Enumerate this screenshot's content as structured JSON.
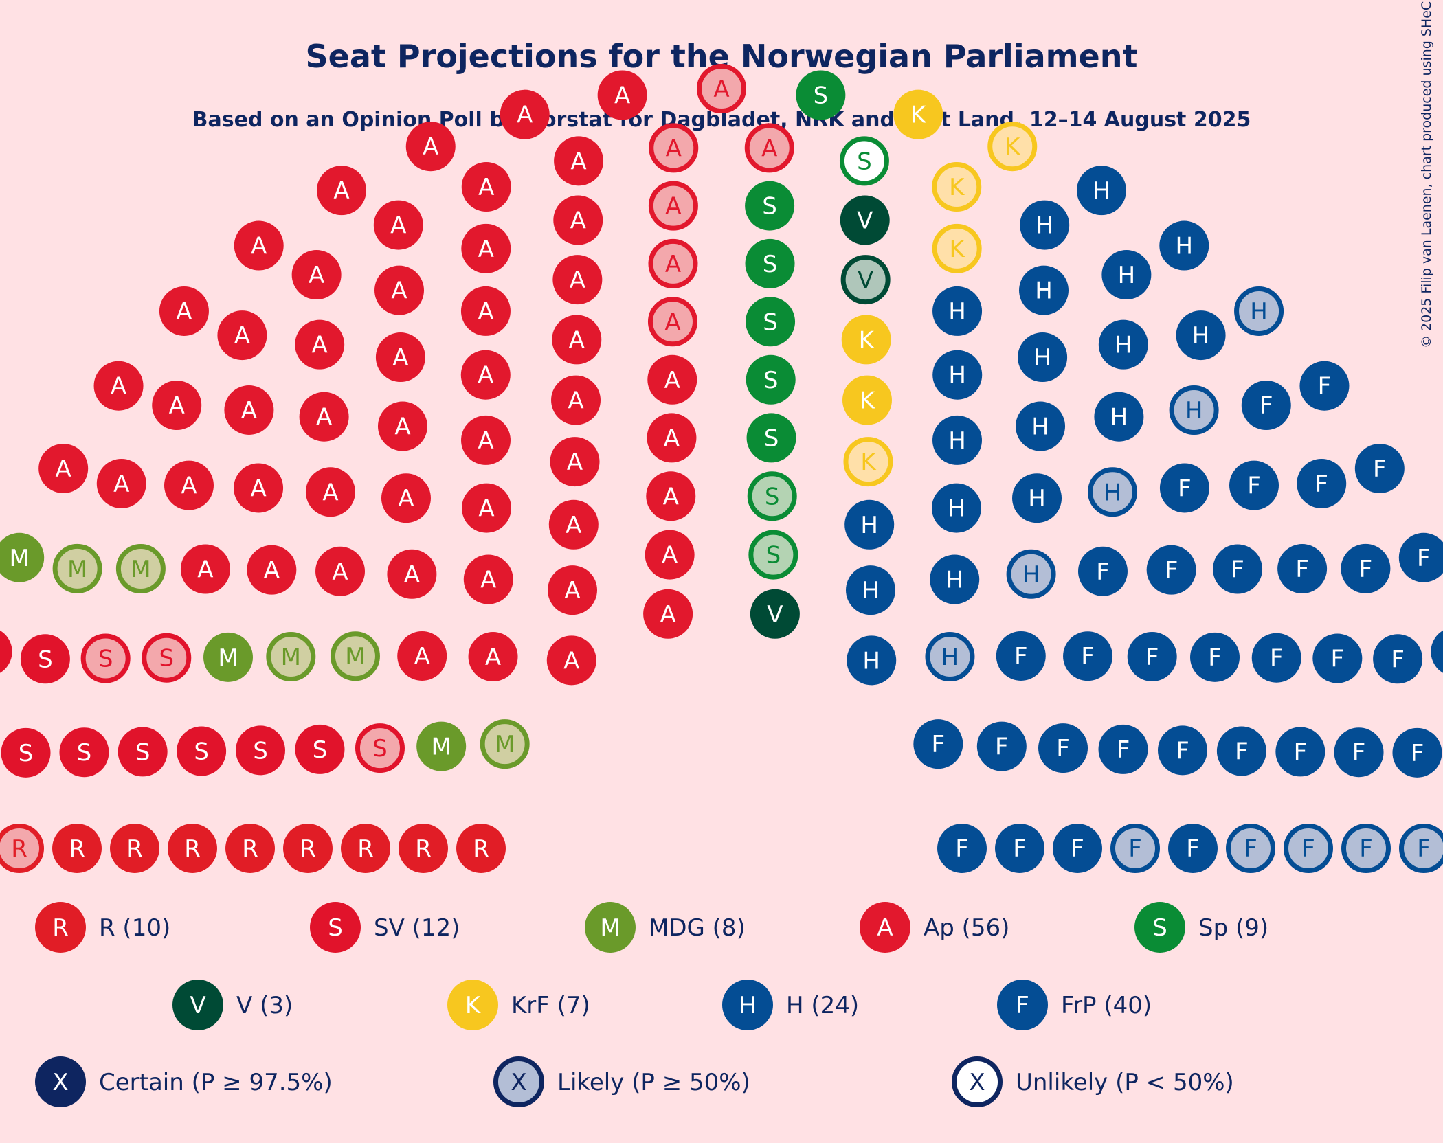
{
  "title": "Seat Projections for the Norwegian Parliament",
  "subtitle": "Based on an Opinion Poll by Norstat for Dagbladet, NRK and Vårt Land, 12–14 August 2025",
  "copyright": "© 2025 Filip van Laenen, chart produced using SHeC",
  "chart_data": {
    "type": "parliament",
    "total_seats": 169,
    "parties": [
      {
        "letter": "R",
        "name": "R",
        "label": "R (10)",
        "seats": 10,
        "certain": 8,
        "likely": 2,
        "unlikely": 0,
        "color": "#E11D26",
        "light": "#F3A8AC",
        "text_color": "#FFFFFF"
      },
      {
        "letter": "S",
        "name": "SV",
        "label": "SV (12)",
        "seats": 12,
        "certain": 9,
        "likely": 3,
        "unlikely": 0,
        "color": "#E1132B",
        "light": "#F3A8AC",
        "text_color": "#FFFFFF"
      },
      {
        "letter": "M",
        "name": "MDG",
        "label": "MDG (8)",
        "seats": 8,
        "certain": 3,
        "likely": 5,
        "unlikely": 0,
        "color": "#6A9A2A",
        "light": "#D0CFA2",
        "text_color": "#FFFFFF"
      },
      {
        "letter": "A",
        "name": "Ap",
        "label": "Ap (56)",
        "seats": 56,
        "certain": 50,
        "likely": 6,
        "unlikely": 0,
        "color": "#E2182D",
        "light": "#F3A8AC",
        "text_color": "#FFFFFF"
      },
      {
        "letter": "S",
        "name": "Sp",
        "label": "Sp (9)",
        "seats": 9,
        "certain": 6,
        "likely": 2,
        "unlikely": 1,
        "color": "#0A8C35",
        "light": "#B4D3B3",
        "text_color": "#FFFFFF"
      },
      {
        "letter": "V",
        "name": "V",
        "label": "V (3)",
        "seats": 3,
        "certain": 2,
        "likely": 1,
        "unlikely": 0,
        "color": "#004A35",
        "light": "#AFC6BA",
        "text_color": "#FFFFFF"
      },
      {
        "letter": "K",
        "name": "KrF",
        "label": "KrF (7)",
        "seats": 7,
        "certain": 3,
        "likely": 4,
        "unlikely": 0,
        "color": "#F7C71F",
        "light": "#FFE0A9",
        "text_color": "#FFFFFF"
      },
      {
        "letter": "H",
        "name": "H",
        "label": "H (24)",
        "seats": 24,
        "certain": 19,
        "likely": 5,
        "unlikely": 0,
        "color": "#044D94",
        "light": "#B3BED6",
        "text_color": "#FFFFFF"
      },
      {
        "letter": "F",
        "name": "FrP",
        "label": "FrP (40)",
        "seats": 40,
        "certain": 34,
        "likely": 6,
        "unlikely": 0,
        "color": "#044D94",
        "light": "#B3BED6",
        "text_color": "#FFFFFF"
      }
    ],
    "status_legend": [
      {
        "letter": "X",
        "label": "Certain (P ≥ 97.5%)",
        "status": "certain"
      },
      {
        "letter": "X",
        "label": "Likely (P ≥ 50%)",
        "status": "likely"
      },
      {
        "letter": "X",
        "label": "Unlikely (P < 50%)",
        "status": "unlikely"
      }
    ],
    "legend_color": "#0E2560",
    "legend_light": "#B3BED6"
  }
}
